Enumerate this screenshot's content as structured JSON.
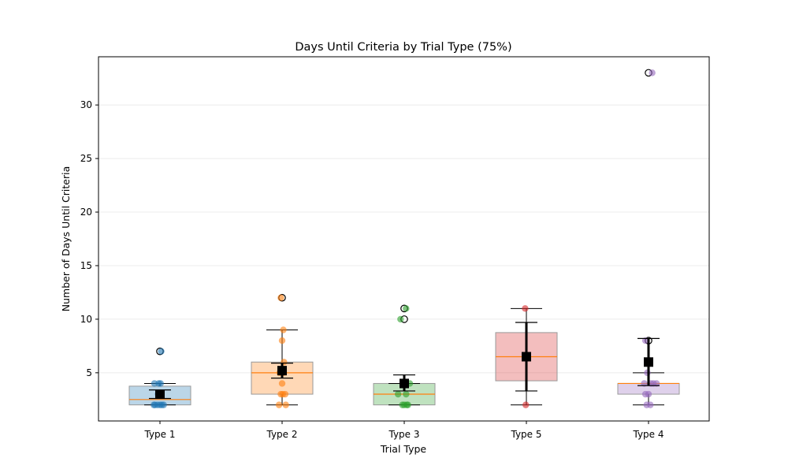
{
  "chart_data": {
    "type": "box",
    "title": "Days Until Criteria by Trial Type (75%)",
    "xlabel": "Trial Type",
    "ylabel": "Number of Days Until Criteria",
    "ylim": [
      0.5,
      34.5
    ],
    "yticks": [
      5,
      10,
      15,
      20,
      25,
      30
    ],
    "grid": "horizontal",
    "categories": [
      "Type 1",
      "Type 2",
      "Type 3",
      "Type 5",
      "Type 4"
    ],
    "colors": [
      "#1f77b4",
      "#ff7f0e",
      "#2ca02c",
      "#d62728",
      "#9467bd"
    ],
    "median_color": "#ff7f0e",
    "boxes": [
      {
        "q1": 2,
        "median": 2.5,
        "q3": 3.75,
        "whisker_low": 2,
        "whisker_high": 4,
        "fliers": [
          7
        ]
      },
      {
        "q1": 3,
        "median": 5,
        "q3": 6,
        "whisker_low": 2,
        "whisker_high": 9,
        "fliers": [
          12
        ]
      },
      {
        "q1": 2,
        "median": 3,
        "q3": 4,
        "whisker_low": 2,
        "whisker_high": 4,
        "fliers": [
          10,
          11
        ]
      },
      {
        "q1": 4.25,
        "median": 6.5,
        "q3": 8.75,
        "whisker_low": 2,
        "whisker_high": 11,
        "fliers": []
      },
      {
        "q1": 3,
        "median": 4,
        "q3": 4,
        "whisker_low": 2,
        "whisker_high": 5,
        "fliers": [
          8,
          33
        ]
      }
    ],
    "means": [
      {
        "mean": 3.0,
        "ci_low": 2.6,
        "ci_high": 3.4
      },
      {
        "mean": 5.2,
        "ci_low": 4.5,
        "ci_high": 5.9
      },
      {
        "mean": 4.0,
        "ci_low": 3.3,
        "ci_high": 4.8
      },
      {
        "mean": 6.5,
        "ci_low": 3.3,
        "ci_high": 9.7
      },
      {
        "mean": 6.0,
        "ci_low": 3.8,
        "ci_high": 8.2
      }
    ],
    "points": [
      [
        [
          2,
          -0.08
        ],
        [
          2,
          -0.04
        ],
        [
          2,
          0.0
        ],
        [
          2,
          0.03
        ],
        [
          2,
          0.06
        ],
        [
          2,
          -0.1
        ],
        [
          3,
          -0.03
        ],
        [
          3,
          0.02
        ],
        [
          4,
          -0.09
        ],
        [
          4,
          -0.02
        ],
        [
          4,
          0.01
        ],
        [
          7,
          0.02
        ]
      ],
      [
        [
          2,
          -0.05
        ],
        [
          2,
          0.06
        ],
        [
          3,
          -0.02
        ],
        [
          3,
          0.01
        ],
        [
          3,
          0.05
        ],
        [
          4,
          0.0
        ],
        [
          5,
          -0.04
        ],
        [
          5,
          0.02
        ],
        [
          6,
          0.03
        ],
        [
          8,
          0.0
        ],
        [
          9,
          0.02
        ],
        [
          12,
          -0.02
        ]
      ],
      [
        [
          2,
          -0.03
        ],
        [
          2,
          0.0
        ],
        [
          2,
          0.04
        ],
        [
          2,
          0.06
        ],
        [
          3,
          -0.1
        ],
        [
          3,
          0.03
        ],
        [
          4,
          -0.01
        ],
        [
          4,
          0.09
        ],
        [
          10,
          -0.06
        ],
        [
          11,
          0.03
        ]
      ],
      [
        [
          2,
          -0.01
        ],
        [
          11,
          -0.02
        ]
      ],
      [
        [
          2,
          -0.03
        ],
        [
          2,
          0.03
        ],
        [
          3,
          -0.05
        ],
        [
          3,
          0.0
        ],
        [
          4,
          -0.07
        ],
        [
          4,
          0.04
        ],
        [
          4,
          0.08
        ],
        [
          4,
          0.13
        ],
        [
          5,
          -0.02
        ],
        [
          8,
          -0.05
        ],
        [
          33,
          0.06
        ]
      ]
    ]
  }
}
